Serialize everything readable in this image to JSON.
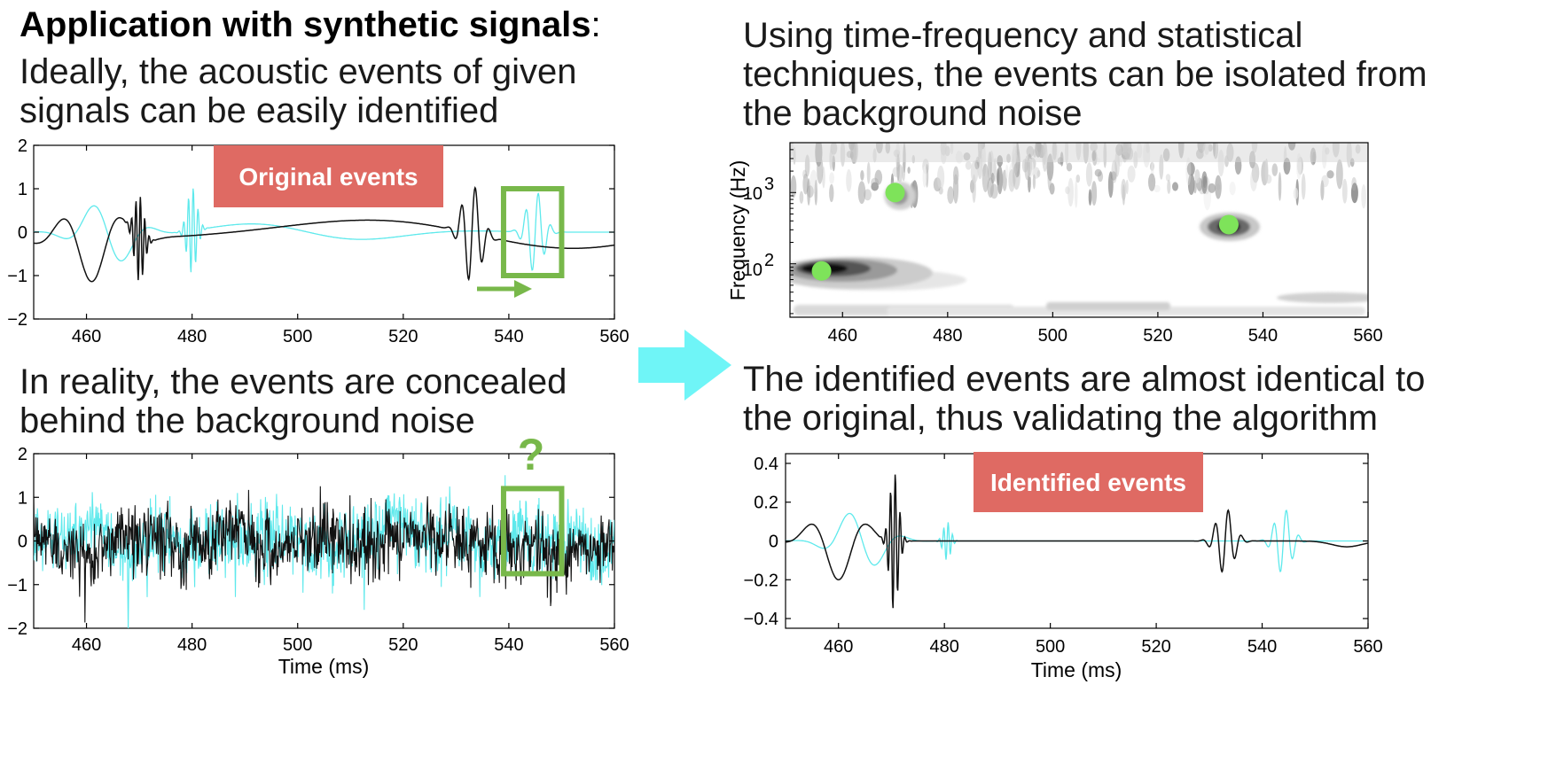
{
  "slide": {
    "heading_bold": "Application with synthetic signals",
    "heading_colon": ":",
    "text_ideal_1": "Ideally, the acoustic events of given",
    "text_ideal_2": "signals can be easily identified",
    "text_reality_1": "In reality, the events are concealed",
    "text_reality_2": "behind the background noise",
    "text_tf_1": "Using time-frequency and statistical",
    "text_tf_2": "techniques, the events can be isolated from",
    "text_tf_3": "the background noise",
    "text_ident_1": "The identified events are almost identical to",
    "text_ident_2": "the original, thus validating the algorithm",
    "badge_original": "Original events",
    "badge_identified": "Identified events",
    "question_mark": "?"
  },
  "colors": {
    "cyan": "#5ee9ec",
    "black": "#111111",
    "green_box": "#78b84a",
    "green_dot": "#7ee35a",
    "badge_red": "#df6a63",
    "arrow_cyan": "#6ff5f7"
  },
  "chart_data": [
    {
      "id": "original",
      "type": "line",
      "title": "",
      "xlabel": "",
      "ylabel": "",
      "xlim": [
        450,
        560
      ],
      "ylim": [
        -2,
        2
      ],
      "xticks": [
        "460",
        "480",
        "500",
        "520",
        "540",
        "560"
      ],
      "yticks": [
        "−2",
        "−1",
        "0",
        "1",
        "2"
      ],
      "series": [
        {
          "name": "black",
          "description": "clean synthetic signal with events near 470 ms and 533 ms"
        },
        {
          "name": "cyan",
          "description": "clean synthetic signal with events near 480 ms and 545 ms"
        }
      ],
      "annotation_box_x": [
        539,
        550
      ],
      "annotation_box_y": [
        -1,
        1
      ]
    },
    {
      "id": "noisy",
      "type": "line",
      "title": "",
      "xlabel": "Time (ms)",
      "ylabel": "",
      "xlim": [
        450,
        560
      ],
      "ylim": [
        -2,
        2
      ],
      "xticks": [
        "460",
        "480",
        "500",
        "520",
        "540",
        "560"
      ],
      "yticks": [
        "−2",
        "−1",
        "0",
        "1",
        "2"
      ],
      "series": [
        {
          "name": "black",
          "description": "signal buried in background noise"
        },
        {
          "name": "cyan",
          "description": "signal buried in background noise"
        }
      ],
      "annotation_box_x": [
        539,
        550
      ],
      "annotation_box_y": [
        -0.75,
        1.2
      ]
    },
    {
      "id": "spectrogram",
      "type": "heatmap",
      "title": "",
      "xlabel": "",
      "ylabel": "Frequency (Hz)",
      "xlim": [
        450,
        560
      ],
      "ylim_log10": [
        1.25,
        3.7
      ],
      "xticks": [
        "460",
        "480",
        "500",
        "520",
        "540",
        "560"
      ],
      "yticks_base": "10",
      "yticks_exp": [
        "2",
        "3"
      ],
      "detected_events": [
        {
          "time_ms": 456,
          "log10_freq": 1.9
        },
        {
          "time_ms": 470,
          "log10_freq": 3.0
        },
        {
          "time_ms": 533.5,
          "log10_freq": 2.55
        }
      ]
    },
    {
      "id": "identified",
      "type": "line",
      "title": "",
      "xlabel": "Time (ms)",
      "ylabel": "",
      "xlim": [
        450,
        560
      ],
      "ylim": [
        -0.45,
        0.45
      ],
      "xticks": [
        "460",
        "480",
        "500",
        "520",
        "540",
        "560"
      ],
      "yticks": [
        "−0.4",
        "−0.2",
        "0",
        "0.2",
        "0.4"
      ],
      "series": [
        {
          "name": "black",
          "description": "identified events near 470 ms and 533 ms"
        },
        {
          "name": "cyan",
          "description": "identified events near 480 ms and 545 ms"
        }
      ]
    }
  ]
}
